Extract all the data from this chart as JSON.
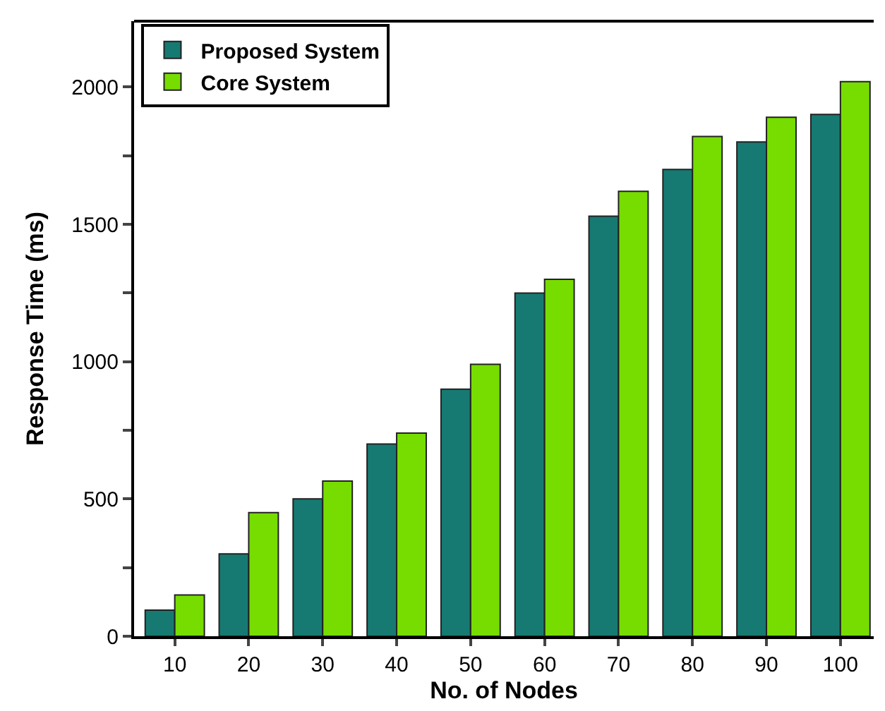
{
  "chart_data": {
    "type": "bar",
    "xlabel": "No. of Nodes",
    "ylabel": "Response Time (ms)",
    "categories": [
      "10",
      "20",
      "30",
      "40",
      "50",
      "60",
      "70",
      "80",
      "90",
      "100"
    ],
    "series": [
      {
        "name": "Proposed System",
        "color": "#167a72",
        "values": [
          95,
          300,
          500,
          700,
          900,
          1250,
          1530,
          1700,
          1800,
          1900
        ]
      },
      {
        "name": "Core System",
        "color": "#77dd00",
        "values": [
          150,
          450,
          565,
          740,
          990,
          1300,
          1620,
          1820,
          1890,
          2020
        ]
      }
    ],
    "ylim": [
      0,
      2240
    ],
    "yticks": [
      0,
      {
        "value": 250,
        "label": null
      },
      500,
      {
        "value": 750,
        "label": null
      },
      1000,
      {
        "value": 1250,
        "label": null
      },
      1500,
      {
        "value": 1750,
        "label": null
      },
      2000
    ],
    "legend": "top left"
  }
}
